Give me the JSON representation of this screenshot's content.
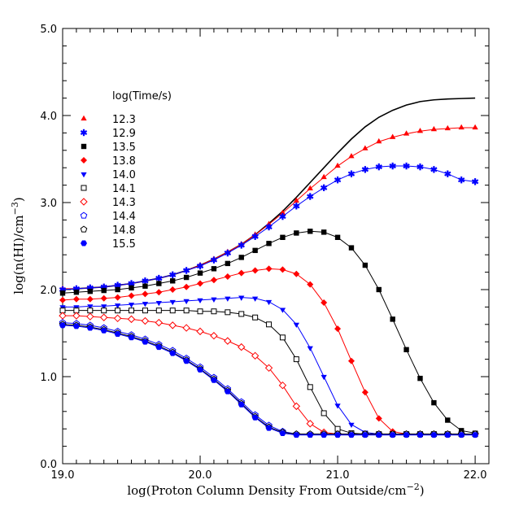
{
  "chart_data": {
    "type": "line",
    "title": "",
    "xlabel": "log(Proton Column Density From Outside/cm",
    "xlabel_sup": "−2",
    "xlabel_end": ")",
    "ylabel": "log(n(HI)/cm",
    "ylabel_sup": "−3",
    "ylabel_end": ")",
    "xlim": [
      19.0,
      22.1
    ],
    "ylim": [
      0.0,
      5.0
    ],
    "xticks": [
      19.0,
      20.0,
      21.0,
      22.0
    ],
    "xtick_labels": [
      "19.0",
      "20.0",
      "21.0",
      "22.0"
    ],
    "yticks": [
      0.0,
      1.0,
      2.0,
      3.0,
      4.0,
      5.0
    ],
    "ytick_labels": [
      "0.0",
      "1.0",
      "2.0",
      "3.0",
      "4.0",
      "5.0"
    ],
    "grid": false,
    "legend_title": "log(Time/s)",
    "legend_position": "upper-left",
    "x": [
      19.0,
      19.1,
      19.2,
      19.3,
      19.4,
      19.5,
      19.6,
      19.7,
      19.8,
      19.9,
      20.0,
      20.1,
      20.2,
      20.3,
      20.4,
      20.5,
      20.6,
      20.7,
      20.8,
      20.9,
      21.0,
      21.1,
      21.2,
      21.3,
      21.4,
      21.5,
      21.6,
      21.7,
      21.8,
      21.9,
      22.0
    ],
    "series": [
      {
        "name": "equilibrium",
        "marker": "none",
        "color": "#000000",
        "legend": false,
        "values": [
          2.0,
          2.01,
          2.02,
          2.03,
          2.05,
          2.07,
          2.1,
          2.13,
          2.17,
          2.22,
          2.28,
          2.35,
          2.43,
          2.52,
          2.63,
          2.76,
          2.9,
          3.06,
          3.23,
          3.4,
          3.57,
          3.73,
          3.87,
          3.98,
          4.06,
          4.12,
          4.16,
          4.18,
          4.19,
          4.195,
          4.2
        ]
      },
      {
        "name": "12.3",
        "marker": "triangle-up",
        "color": "#ff0000",
        "legend": true,
        "values": [
          2.01,
          2.01,
          2.02,
          2.03,
          2.05,
          2.07,
          2.1,
          2.13,
          2.17,
          2.22,
          2.28,
          2.35,
          2.43,
          2.52,
          2.63,
          2.75,
          2.88,
          3.02,
          3.16,
          3.29,
          3.42,
          3.53,
          3.62,
          3.7,
          3.75,
          3.79,
          3.82,
          3.84,
          3.85,
          3.86,
          3.86
        ]
      },
      {
        "name": "12.9",
        "marker": "star",
        "color": "#0000ff",
        "legend": true,
        "values": [
          2.0,
          2.01,
          2.02,
          2.03,
          2.05,
          2.07,
          2.1,
          2.13,
          2.17,
          2.22,
          2.27,
          2.34,
          2.42,
          2.51,
          2.61,
          2.72,
          2.84,
          2.96,
          3.07,
          3.17,
          3.26,
          3.33,
          3.38,
          3.41,
          3.42,
          3.42,
          3.41,
          3.38,
          3.33,
          3.26,
          3.24
        ]
      },
      {
        "name": "13.5",
        "marker": "square-filled",
        "color": "#000000",
        "legend": true,
        "values": [
          1.96,
          1.97,
          1.98,
          1.99,
          2.0,
          2.02,
          2.04,
          2.07,
          2.1,
          2.14,
          2.19,
          2.24,
          2.3,
          2.37,
          2.45,
          2.53,
          2.6,
          2.65,
          2.67,
          2.66,
          2.6,
          2.48,
          2.28,
          2.0,
          1.66,
          1.31,
          0.98,
          0.7,
          0.5,
          0.38,
          0.35
        ]
      },
      {
        "name": "13.8",
        "marker": "diamond-filled",
        "color": "#ff0000",
        "legend": true,
        "values": [
          1.88,
          1.89,
          1.89,
          1.9,
          1.91,
          1.93,
          1.95,
          1.97,
          2.0,
          2.03,
          2.07,
          2.11,
          2.15,
          2.19,
          2.22,
          2.24,
          2.23,
          2.18,
          2.06,
          1.85,
          1.55,
          1.18,
          0.82,
          0.52,
          0.37,
          0.34,
          0.34,
          0.34,
          0.34,
          0.34,
          0.34
        ]
      },
      {
        "name": "14.0",
        "marker": "triangle-down",
        "color": "#0000ff",
        "legend": true,
        "values": [
          1.8,
          1.8,
          1.81,
          1.81,
          1.82,
          1.83,
          1.84,
          1.85,
          1.86,
          1.87,
          1.88,
          1.89,
          1.9,
          1.91,
          1.9,
          1.86,
          1.77,
          1.6,
          1.33,
          1.0,
          0.67,
          0.45,
          0.36,
          0.34,
          0.34,
          0.34,
          0.34,
          0.34,
          0.34,
          0.34,
          0.34
        ]
      },
      {
        "name": "14.1",
        "marker": "square-open",
        "color": "#000000",
        "legend": true,
        "values": [
          1.76,
          1.76,
          1.76,
          1.76,
          1.76,
          1.76,
          1.76,
          1.76,
          1.76,
          1.76,
          1.75,
          1.75,
          1.74,
          1.72,
          1.68,
          1.6,
          1.45,
          1.2,
          0.88,
          0.58,
          0.4,
          0.35,
          0.34,
          0.34,
          0.34,
          0.34,
          0.34,
          0.34,
          0.34,
          0.34,
          0.34
        ]
      },
      {
        "name": "14.3",
        "marker": "diamond-open",
        "color": "#ff0000",
        "legend": true,
        "values": [
          1.7,
          1.7,
          1.69,
          1.68,
          1.67,
          1.66,
          1.64,
          1.62,
          1.59,
          1.56,
          1.52,
          1.47,
          1.41,
          1.34,
          1.24,
          1.1,
          0.9,
          0.66,
          0.46,
          0.36,
          0.34,
          0.34,
          0.34,
          0.34,
          0.34,
          0.34,
          0.34,
          0.34,
          0.34,
          0.34,
          0.34
        ]
      },
      {
        "name": "14.4",
        "marker": "pentagon-open",
        "color": "#0000ff",
        "legend": true,
        "values": [
          1.62,
          1.61,
          1.59,
          1.56,
          1.52,
          1.48,
          1.43,
          1.37,
          1.3,
          1.21,
          1.11,
          0.99,
          0.86,
          0.71,
          0.56,
          0.44,
          0.37,
          0.34,
          0.34,
          0.34,
          0.34,
          0.34,
          0.34,
          0.34,
          0.34,
          0.34,
          0.34,
          0.34,
          0.34,
          0.34,
          0.34
        ]
      },
      {
        "name": "14.8",
        "marker": "pentagon-open",
        "color": "#000000",
        "legend": true,
        "values": [
          1.6,
          1.59,
          1.57,
          1.54,
          1.5,
          1.46,
          1.41,
          1.35,
          1.28,
          1.19,
          1.09,
          0.97,
          0.84,
          0.69,
          0.54,
          0.42,
          0.36,
          0.34,
          0.34,
          0.34,
          0.34,
          0.34,
          0.34,
          0.34,
          0.34,
          0.34,
          0.34,
          0.34,
          0.34,
          0.34,
          0.34
        ]
      },
      {
        "name": "15.5",
        "marker": "hexagon-filled",
        "color": "#0000ff",
        "legend": true,
        "values": [
          1.59,
          1.58,
          1.56,
          1.53,
          1.49,
          1.45,
          1.4,
          1.34,
          1.27,
          1.18,
          1.08,
          0.96,
          0.83,
          0.68,
          0.53,
          0.41,
          0.35,
          0.33,
          0.33,
          0.33,
          0.33,
          0.33,
          0.33,
          0.33,
          0.33,
          0.33,
          0.33,
          0.33,
          0.33,
          0.33,
          0.33
        ]
      }
    ]
  }
}
